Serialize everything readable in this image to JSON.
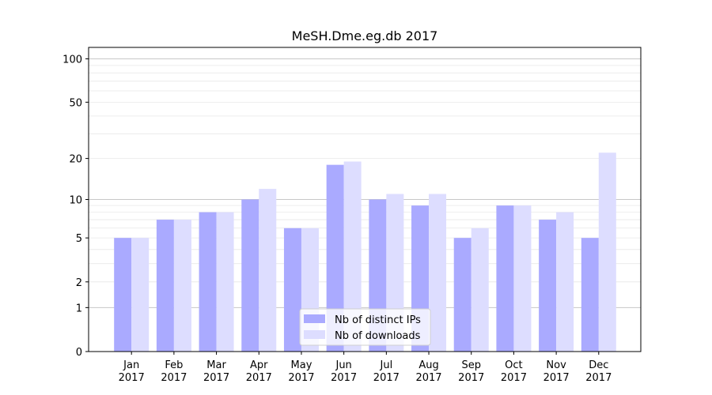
{
  "chart_data": {
    "type": "bar",
    "title": "MeSH.Dme.eg.db 2017",
    "categories": [
      {
        "month": "Jan",
        "year": "2017"
      },
      {
        "month": "Feb",
        "year": "2017"
      },
      {
        "month": "Mar",
        "year": "2017"
      },
      {
        "month": "Apr",
        "year": "2017"
      },
      {
        "month": "May",
        "year": "2017"
      },
      {
        "month": "Jun",
        "year": "2017"
      },
      {
        "month": "Jul",
        "year": "2017"
      },
      {
        "month": "Aug",
        "year": "2017"
      },
      {
        "month": "Sep",
        "year": "2017"
      },
      {
        "month": "Oct",
        "year": "2017"
      },
      {
        "month": "Nov",
        "year": "2017"
      },
      {
        "month": "Dec",
        "year": "2017"
      }
    ],
    "series": [
      {
        "name": "Nb of distinct IPs",
        "color": "#aaaaff",
        "values": [
          5,
          7,
          8,
          10,
          6,
          18,
          10,
          9,
          5,
          9,
          7,
          5
        ]
      },
      {
        "name": "Nb of downloads",
        "color": "#ddddff",
        "values": [
          5,
          7,
          8,
          12,
          6,
          19,
          11,
          11,
          6,
          9,
          8,
          22
        ]
      }
    ],
    "yscale": "log1p",
    "yticks": [
      0,
      1,
      2,
      5,
      10,
      20,
      50,
      100
    ],
    "ylim": [
      0,
      120
    ],
    "grid": true,
    "legend_position": "lower-center"
  }
}
